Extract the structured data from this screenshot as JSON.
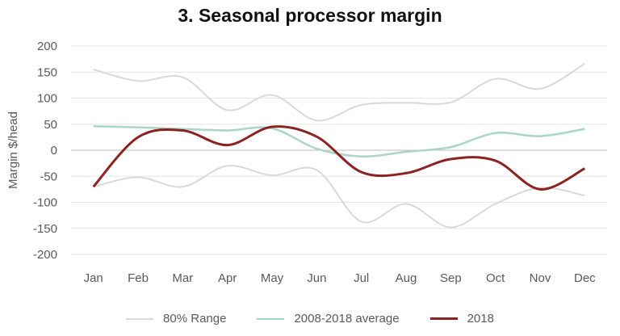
{
  "chart_data": {
    "type": "line",
    "title": "3. Seasonal processor margin",
    "ylabel": "Margin $/head",
    "xlabel": "",
    "categories": [
      "Jan",
      "Feb",
      "Mar",
      "Apr",
      "May",
      "Jun",
      "Jul",
      "Aug",
      "Sep",
      "Oct",
      "Nov",
      "Dec"
    ],
    "ylim": [
      -200,
      200
    ],
    "yticks": [
      200,
      150,
      100,
      50,
      0,
      -50,
      -100,
      -150,
      -200
    ],
    "ytick_labels": [
      "200",
      "150",
      "100",
      "50",
      "0",
      "-50",
      "-100",
      "-150",
      "-200"
    ],
    "grid": true,
    "legend_position": "bottom",
    "range": {
      "name": "80% Range",
      "color": "#d9d9d9",
      "upper": [
        155,
        133,
        140,
        77,
        106,
        57,
        87,
        91,
        92,
        137,
        118,
        166
      ],
      "lower": [
        -70,
        -52,
        -70,
        -30,
        -48,
        -38,
        -137,
        -103,
        -148,
        -103,
        -72,
        -87
      ]
    },
    "series": [
      {
        "name": "2008-2018 average",
        "color": "#a9d6c6",
        "values": [
          46,
          44,
          41,
          38,
          42,
          3,
          -12,
          -3,
          6,
          33,
          27,
          41
        ]
      },
      {
        "name": "2018",
        "color": "#8b2323",
        "values": [
          -70,
          25,
          38,
          10,
          45,
          26,
          -42,
          -44,
          -17,
          -20,
          -75,
          -35
        ]
      }
    ]
  }
}
